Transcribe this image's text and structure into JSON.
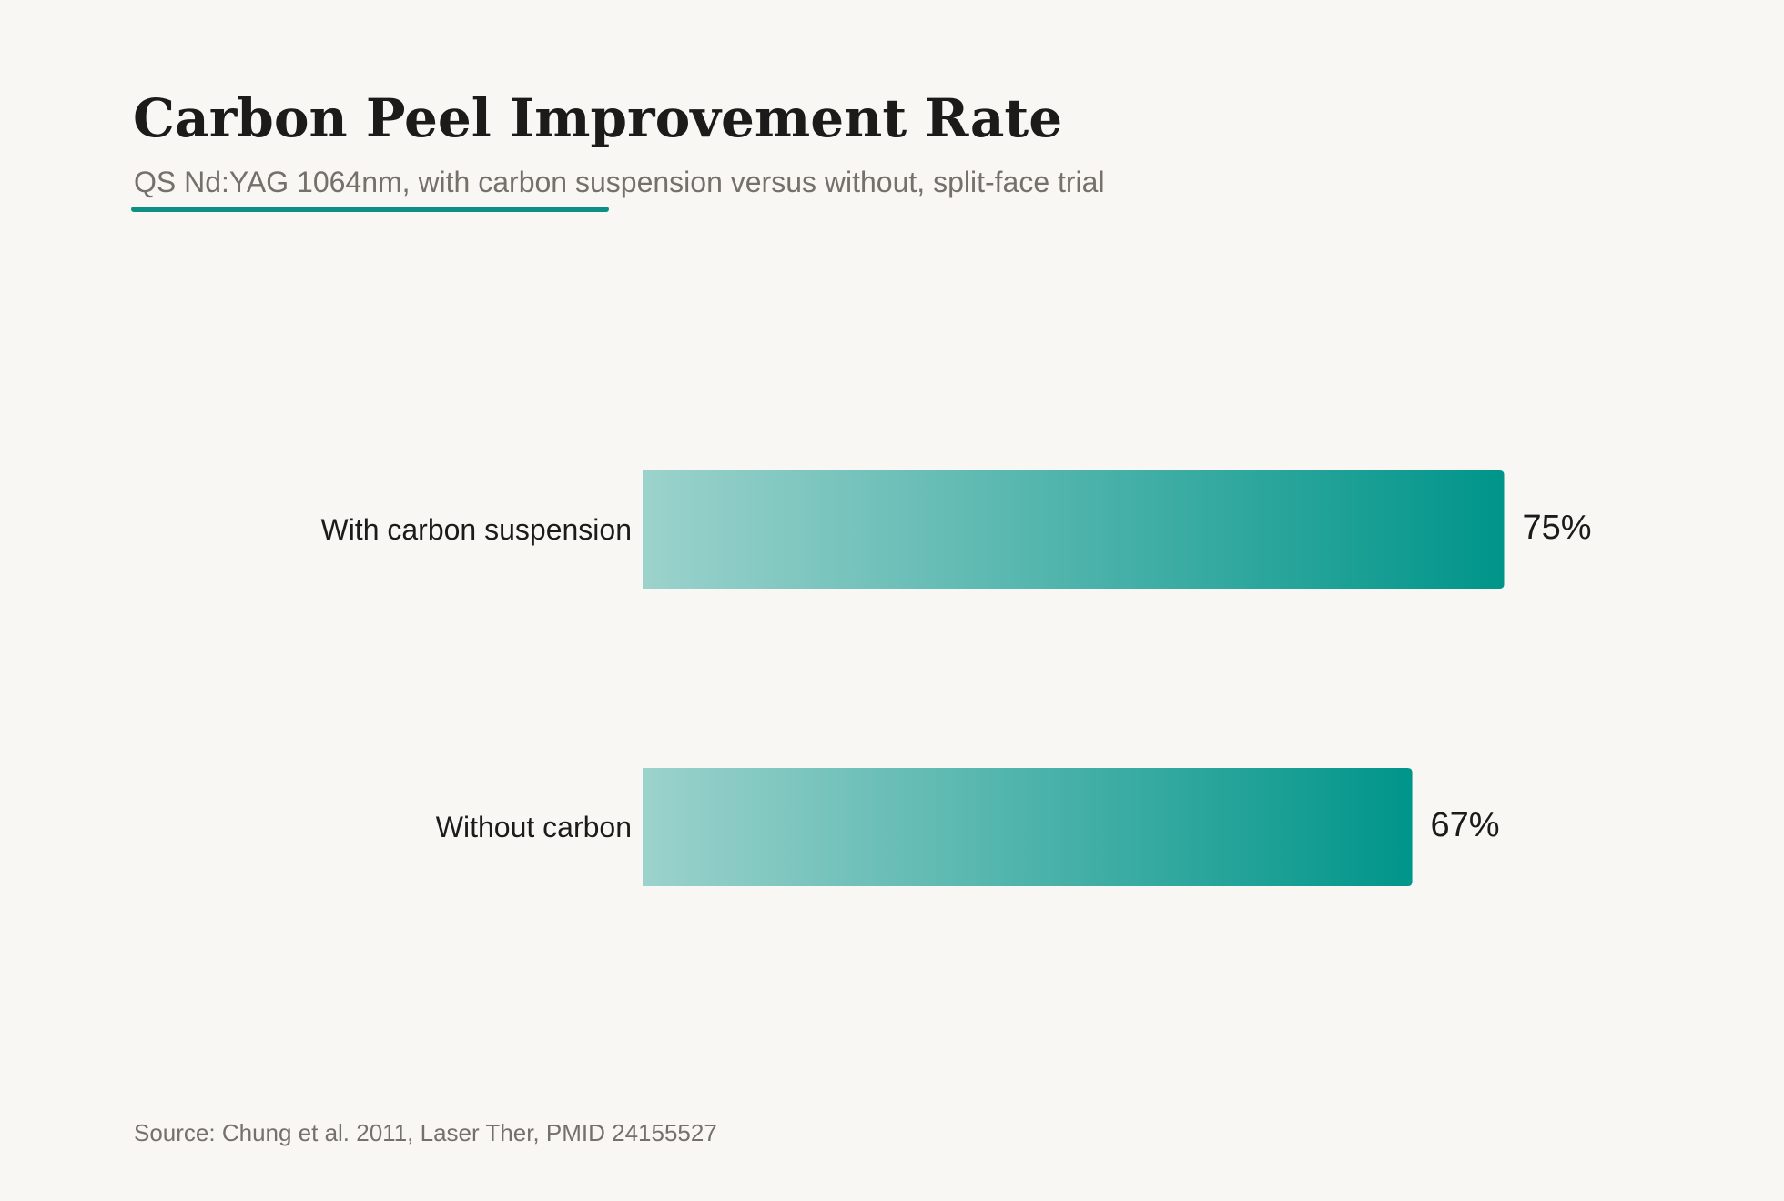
{
  "header": {
    "title": "Carbon Peel Improvement Rate",
    "subtitle": "QS Nd:YAG 1064nm, with carbon suspension versus without, split-face trial"
  },
  "footer": {
    "source": "Source: Chung et al. 2011, Laser Ther, PMID 24155527"
  },
  "colors": {
    "background": "#f8f7f4",
    "bar_start": "#9cd2cc",
    "bar_end": "#00958a",
    "accent": "#0d8f86",
    "title_text": "#1c1b19",
    "muted_text": "#76706a"
  },
  "chart_data": {
    "type": "bar",
    "orientation": "horizontal",
    "title": "Carbon Peel Improvement Rate",
    "subtitle": "QS Nd:YAG 1064nm, with carbon suspension versus without, split-face trial",
    "categories": [
      "With carbon suspension",
      "Without carbon"
    ],
    "values": [
      75,
      67
    ],
    "value_labels": [
      "75%",
      "67%"
    ],
    "unit": "%",
    "xlim": [
      0,
      100
    ],
    "grid": false,
    "legend": "none"
  }
}
